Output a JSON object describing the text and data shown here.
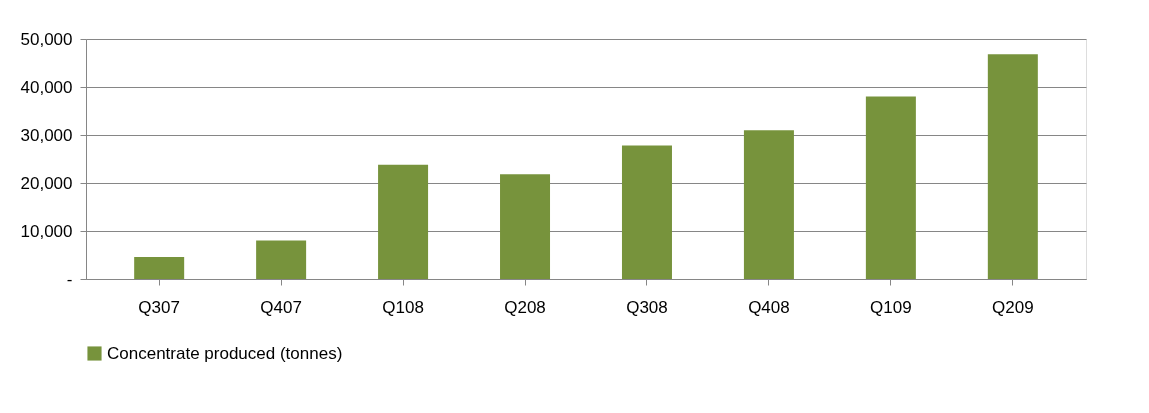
{
  "chart_data": {
    "type": "bar",
    "categories": [
      "Q307",
      "Q407",
      "Q108",
      "Q208",
      "Q308",
      "Q408",
      "Q109",
      "Q209"
    ],
    "series": [
      {
        "name": "Concentrate produced (tonnes)",
        "color": "#77933c",
        "values": [
          4600,
          8000,
          23800,
          21800,
          27800,
          31000,
          38000,
          46800
        ]
      }
    ],
    "ylim": [
      0,
      50000
    ],
    "yticks": [
      {
        "value": 0,
        "label": "-"
      },
      {
        "value": 10000,
        "label": "10,000"
      },
      {
        "value": 20000,
        "label": "20,000"
      },
      {
        "value": 30000,
        "label": "30,000"
      },
      {
        "value": 40000,
        "label": "40,000"
      },
      {
        "value": 50000,
        "label": "50,000"
      }
    ],
    "grid": "y",
    "legend": "bottom"
  }
}
